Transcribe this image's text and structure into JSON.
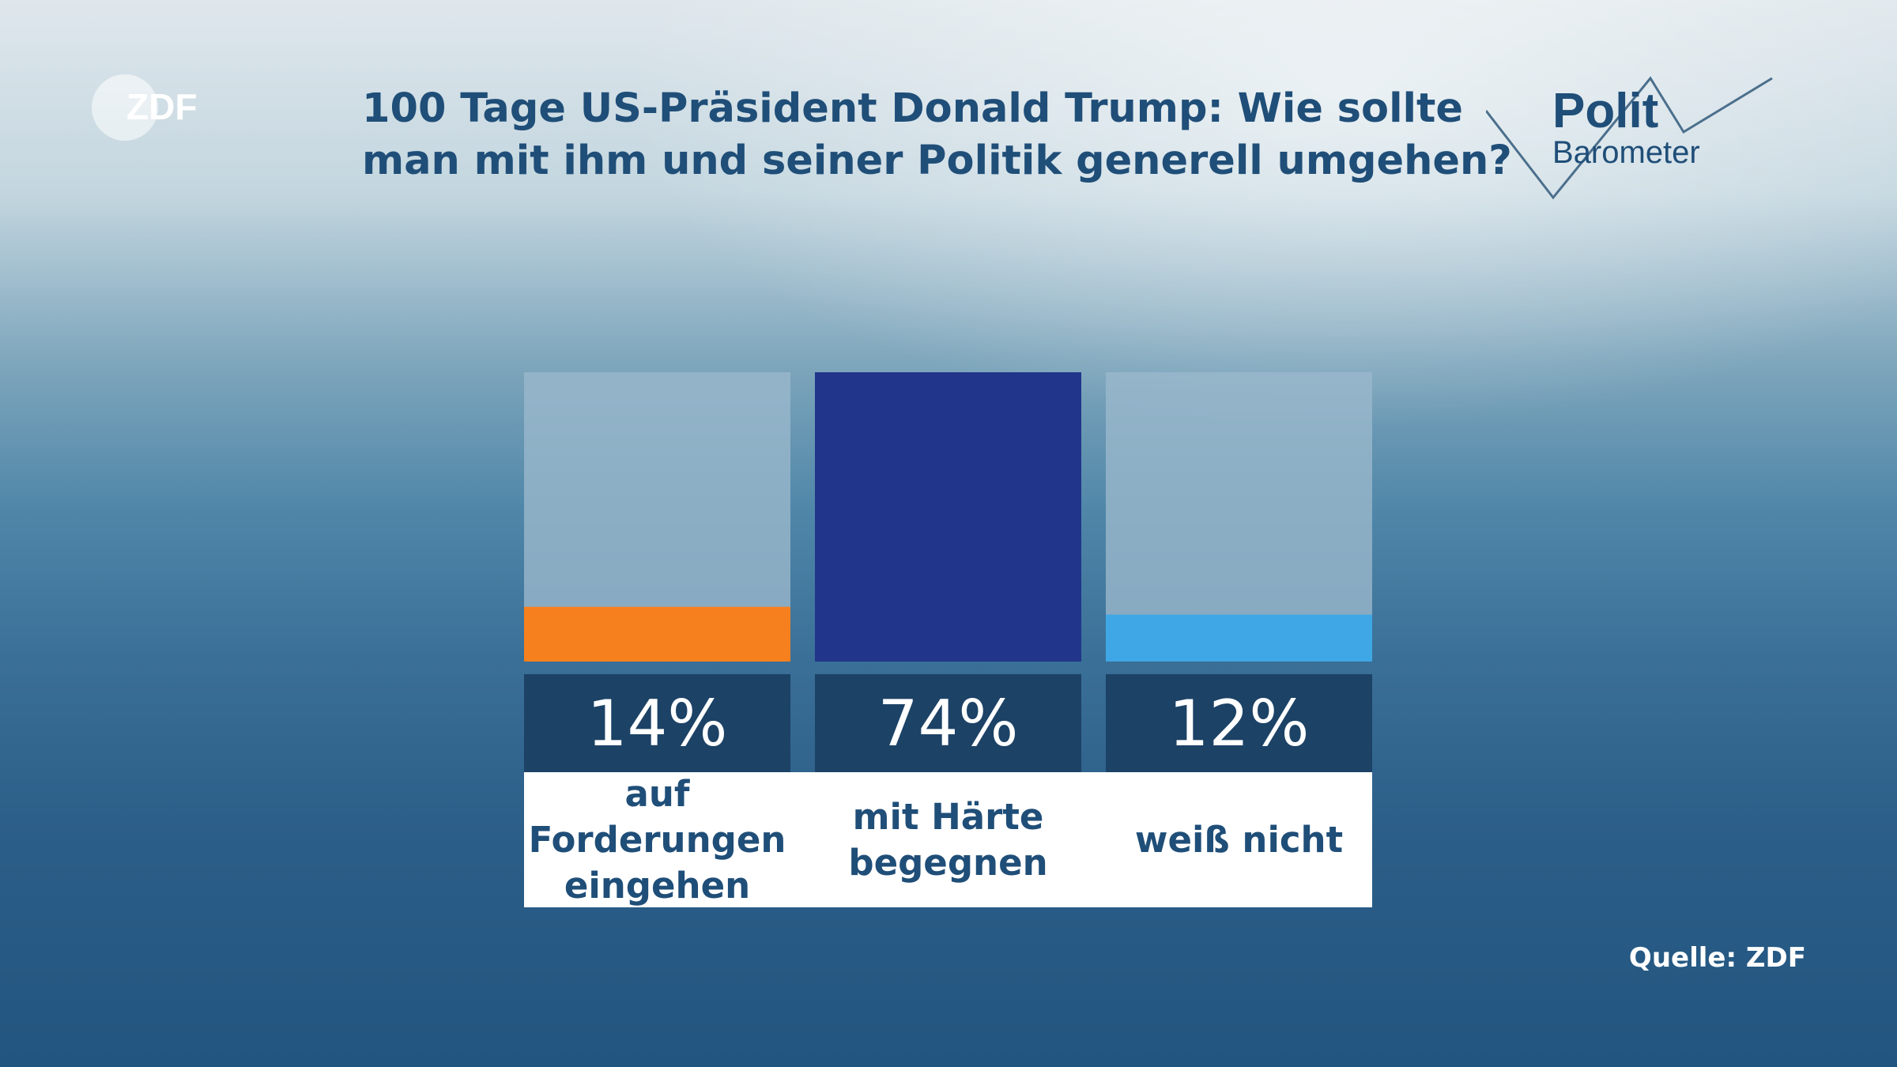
{
  "header": {
    "logo_left": "ZDF",
    "title_line1": "100 Tage US-Präsident Donald Trump: Wie sollte",
    "title_line2": "man mit ihm und seiner Politik generell umgehen?",
    "logo_right_line1": "Polit",
    "logo_right_line2": "Barometer"
  },
  "footer": {
    "source": "Quelle: ZDF"
  },
  "colors": {
    "track": "#9ab8cc",
    "value_box": "#1c4266",
    "title_text": "#1f4e78"
  },
  "chart_data": {
    "type": "bar",
    "title": "100 Tage US-Präsident Donald Trump: Wie sollte man mit ihm und seiner Politik generell umgehen?",
    "categories": [
      "auf Forderungen eingehen",
      "mit Härte begegnen",
      "weiß nicht"
    ],
    "values": [
      14,
      74,
      12
    ],
    "value_labels": [
      "14%",
      "74%",
      "12%"
    ],
    "category_lines": [
      [
        "auf",
        "Forderungen",
        "eingehen"
      ],
      [
        "mit Härte",
        "begegnen"
      ],
      [
        "weiß nicht"
      ]
    ],
    "bar_colors": [
      "#f7801e",
      "#21358a",
      "#3fa7e6"
    ],
    "ylim": [
      0,
      74
    ],
    "unit": "%",
    "grid": false,
    "legend": "none"
  }
}
